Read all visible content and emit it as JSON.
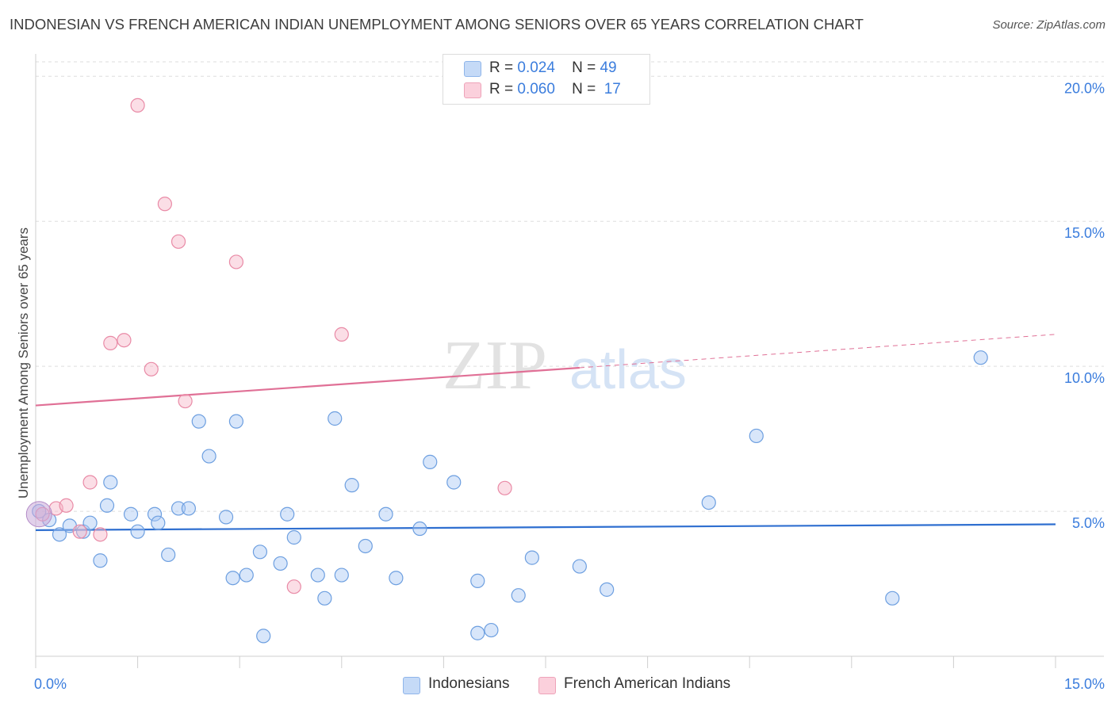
{
  "header": {
    "title": "INDONESIAN VS FRENCH AMERICAN INDIAN UNEMPLOYMENT AMONG SENIORS OVER 65 YEARS CORRELATION CHART",
    "source": "Source: ZipAtlas.com"
  },
  "legend": {
    "rows": [
      {
        "r_label": "R =",
        "r_value": "0.024",
        "n_label": "N =",
        "n_value": "49",
        "color": "#a8c8f5"
      },
      {
        "r_label": "R =",
        "r_value": "0.060",
        "n_label": "N =",
        "n_value": "17",
        "color": "#f7b6c8"
      }
    ]
  },
  "bottom_legend": [
    {
      "label": "Indonesians",
      "color": "#a8c8f5"
    },
    {
      "label": "French American Indians",
      "color": "#f7b6c8"
    }
  ],
  "watermark": {
    "zip": "ZIP",
    "atlas": "atlas"
  },
  "chart_data": {
    "type": "scatter",
    "title": "INDONESIAN VS FRENCH AMERICAN INDIAN UNEMPLOYMENT AMONG SENIORS OVER 65 YEARS CORRELATION CHART",
    "xlabel": "",
    "ylabel": "Unemployment Among Seniors over 65 years",
    "xlim": [
      0,
      15
    ],
    "ylim": [
      0,
      20.5
    ],
    "x_tick_labels": [
      "0.0%",
      "15.0%"
    ],
    "y_ticks": [
      5,
      10,
      15,
      20
    ],
    "y_tick_labels": [
      "5.0%",
      "10.0%",
      "15.0%",
      "20.0%"
    ],
    "grid": true,
    "colors": {
      "blue": "#a8c8f5",
      "blue_stroke": "#6d9fe0",
      "pink": "#f7b6c8",
      "pink_stroke": "#e98aa6",
      "blue_line": "#2f6fd0",
      "pink_line": "#e07096",
      "tick_text": "#3b7ddd"
    },
    "series": [
      {
        "name": "Indonesians",
        "points": [
          [
            0.05,
            5.0
          ],
          [
            0.2,
            4.7
          ],
          [
            0.35,
            4.2
          ],
          [
            0.5,
            4.5
          ],
          [
            0.7,
            4.3
          ],
          [
            0.8,
            4.6
          ],
          [
            0.95,
            3.3
          ],
          [
            1.05,
            5.2
          ],
          [
            1.1,
            6.0
          ],
          [
            1.4,
            4.9
          ],
          [
            1.5,
            4.3
          ],
          [
            1.75,
            4.9
          ],
          [
            1.8,
            4.6
          ],
          [
            1.95,
            3.5
          ],
          [
            2.1,
            5.1
          ],
          [
            2.25,
            5.1
          ],
          [
            2.4,
            8.1
          ],
          [
            2.55,
            6.9
          ],
          [
            2.8,
            4.8
          ],
          [
            2.9,
            2.7
          ],
          [
            2.95,
            8.1
          ],
          [
            3.1,
            2.8
          ],
          [
            3.3,
            3.6
          ],
          [
            3.35,
            0.7
          ],
          [
            3.6,
            3.2
          ],
          [
            3.7,
            4.9
          ],
          [
            3.8,
            4.1
          ],
          [
            4.15,
            2.8
          ],
          [
            4.25,
            2.0
          ],
          [
            4.4,
            8.2
          ],
          [
            4.5,
            2.8
          ],
          [
            4.65,
            5.9
          ],
          [
            4.85,
            3.8
          ],
          [
            5.15,
            4.9
          ],
          [
            5.3,
            2.7
          ],
          [
            5.65,
            4.4
          ],
          [
            5.8,
            6.7
          ],
          [
            6.15,
            6.0
          ],
          [
            6.5,
            2.6
          ],
          [
            6.5,
            0.8
          ],
          [
            6.7,
            0.9
          ],
          [
            7.1,
            2.1
          ],
          [
            7.3,
            3.4
          ],
          [
            8.0,
            3.1
          ],
          [
            8.4,
            2.3
          ],
          [
            9.9,
            5.3
          ],
          [
            10.6,
            7.6
          ],
          [
            12.6,
            2.0
          ],
          [
            13.9,
            10.3
          ]
        ]
      },
      {
        "name": "French American Indians",
        "points": [
          [
            0.1,
            4.9
          ],
          [
            0.3,
            5.1
          ],
          [
            0.45,
            5.2
          ],
          [
            0.65,
            4.3
          ],
          [
            0.8,
            6.0
          ],
          [
            0.95,
            4.2
          ],
          [
            1.1,
            10.8
          ],
          [
            1.3,
            10.9
          ],
          [
            1.5,
            19.0
          ],
          [
            1.7,
            9.9
          ],
          [
            1.9,
            15.6
          ],
          [
            2.1,
            14.3
          ],
          [
            2.2,
            8.8
          ],
          [
            2.95,
            13.6
          ],
          [
            3.8,
            2.4
          ],
          [
            4.5,
            11.1
          ],
          [
            6.9,
            5.8
          ]
        ]
      }
    ],
    "trend_lines": [
      {
        "series": "Indonesians",
        "x": [
          0,
          15
        ],
        "y": [
          4.35,
          4.55
        ],
        "style": "solid"
      },
      {
        "series": "French American Indians",
        "x": [
          0,
          8.0
        ],
        "y": [
          8.65,
          9.95
        ],
        "style": "solid"
      },
      {
        "series": "French American Indians",
        "x": [
          8.0,
          15
        ],
        "y": [
          9.95,
          11.1
        ],
        "style": "dashed"
      }
    ]
  }
}
